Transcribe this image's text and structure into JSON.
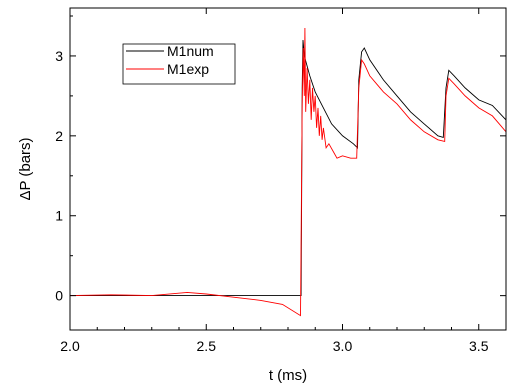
{
  "chart_data": {
    "type": "line",
    "xlabel": "t (ms)",
    "ylabel": "ΔP (bars)",
    "xlim": [
      2.0,
      3.6
    ],
    "ylim": [
      -0.43,
      3.6
    ],
    "xticks": [
      2.0,
      2.5,
      3.0,
      3.5
    ],
    "xtick_labels": [
      "2.0",
      "2.5",
      "3.0",
      "3.5"
    ],
    "yticks": [
      0,
      1,
      2,
      3
    ],
    "ytick_labels": [
      "0",
      "1",
      "2",
      "3"
    ],
    "grid": false,
    "legend_position": "top-left",
    "series": [
      {
        "name": "M1num",
        "color": "#000000",
        "points": [
          [
            2.0,
            0.0
          ],
          [
            2.2,
            0.0
          ],
          [
            2.5,
            0.0
          ],
          [
            2.8,
            0.0
          ],
          [
            2.848,
            0.0
          ],
          [
            2.852,
            2.6
          ],
          [
            2.855,
            3.2
          ],
          [
            2.86,
            3.0
          ],
          [
            2.88,
            2.75
          ],
          [
            2.9,
            2.55
          ],
          [
            2.93,
            2.35
          ],
          [
            2.96,
            2.15
          ],
          [
            3.0,
            2.0
          ],
          [
            3.04,
            1.9
          ],
          [
            3.055,
            1.85
          ],
          [
            3.06,
            2.7
          ],
          [
            3.07,
            3.05
          ],
          [
            3.08,
            3.1
          ],
          [
            3.1,
            2.95
          ],
          [
            3.15,
            2.7
          ],
          [
            3.2,
            2.5
          ],
          [
            3.25,
            2.3
          ],
          [
            3.3,
            2.15
          ],
          [
            3.35,
            2.0
          ],
          [
            3.37,
            1.98
          ],
          [
            3.38,
            2.6
          ],
          [
            3.39,
            2.82
          ],
          [
            3.41,
            2.75
          ],
          [
            3.45,
            2.6
          ],
          [
            3.5,
            2.45
          ],
          [
            3.55,
            2.38
          ],
          [
            3.6,
            2.2
          ]
        ]
      },
      {
        "name": "M1exp",
        "color": "#ff0000",
        "points": [
          [
            2.0,
            0.0
          ],
          [
            2.15,
            0.01
          ],
          [
            2.3,
            0.0
          ],
          [
            2.43,
            0.04
          ],
          [
            2.5,
            0.02
          ],
          [
            2.6,
            -0.02
          ],
          [
            2.7,
            -0.06
          ],
          [
            2.78,
            -0.11
          ],
          [
            2.846,
            -0.25
          ],
          [
            2.852,
            2.4
          ],
          [
            2.856,
            3.1
          ],
          [
            2.86,
            2.5
          ],
          [
            2.862,
            3.35
          ],
          [
            2.865,
            2.3
          ],
          [
            2.87,
            2.85
          ],
          [
            2.875,
            2.4
          ],
          [
            2.88,
            2.7
          ],
          [
            2.885,
            2.2
          ],
          [
            2.89,
            2.6
          ],
          [
            2.895,
            2.3
          ],
          [
            2.9,
            2.5
          ],
          [
            2.905,
            2.1
          ],
          [
            2.91,
            2.35
          ],
          [
            2.915,
            2.0
          ],
          [
            2.92,
            2.25
          ],
          [
            2.925,
            1.95
          ],
          [
            2.93,
            2.1
          ],
          [
            2.94,
            1.85
          ],
          [
            2.95,
            1.9
          ],
          [
            2.97,
            1.78
          ],
          [
            2.98,
            1.72
          ],
          [
            3.0,
            1.75
          ],
          [
            3.03,
            1.72
          ],
          [
            3.052,
            1.72
          ],
          [
            3.06,
            2.6
          ],
          [
            3.07,
            2.95
          ],
          [
            3.08,
            2.9
          ],
          [
            3.1,
            2.75
          ],
          [
            3.15,
            2.55
          ],
          [
            3.2,
            2.4
          ],
          [
            3.25,
            2.2
          ],
          [
            3.3,
            2.05
          ],
          [
            3.35,
            1.95
          ],
          [
            3.375,
            1.93
          ],
          [
            3.38,
            2.5
          ],
          [
            3.39,
            2.72
          ],
          [
            3.41,
            2.65
          ],
          [
            3.45,
            2.5
          ],
          [
            3.5,
            2.35
          ],
          [
            3.55,
            2.25
          ],
          [
            3.6,
            2.05
          ]
        ]
      }
    ]
  }
}
